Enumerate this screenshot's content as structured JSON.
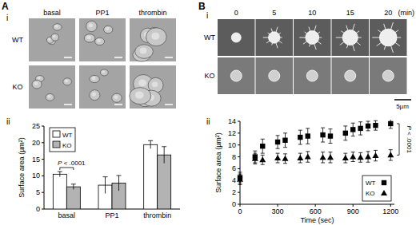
{
  "figure": {
    "panel_a": {
      "label": "A",
      "image_label": "i",
      "chart_label": "ii",
      "columns": [
        "basal",
        "PP1",
        "thrombin"
      ],
      "rows": [
        "WT",
        "KO"
      ]
    },
    "panel_b": {
      "label": "B",
      "image_label": "i",
      "chart_label": "ii",
      "columns": [
        "0",
        "5",
        "10",
        "15",
        "20"
      ],
      "unit": "(min)",
      "rows": [
        "WT",
        "KO"
      ],
      "scale_bar": "5µm"
    }
  },
  "chart_data": [
    {
      "type": "bar",
      "categories": [
        "basal",
        "PP1",
        "thrombin"
      ],
      "series": [
        {
          "name": "WT",
          "color": "#ffffff",
          "values": [
            10.5,
            7.2,
            19.4
          ],
          "errors": [
            0.8,
            2.5,
            1.2
          ]
        },
        {
          "name": "KO",
          "color": "#b3b3b3",
          "values": [
            6.7,
            7.8,
            16.3
          ],
          "errors": [
            0.8,
            2.3,
            2.5
          ]
        }
      ],
      "y_label": "Surface area (µm²)",
      "ylim": [
        0,
        25
      ],
      "yticks": [
        0,
        5,
        10,
        15,
        20,
        25
      ],
      "legend": "top-left",
      "annotation": "P < .0001"
    },
    {
      "type": "scatter",
      "x": [
        0,
        120,
        180,
        300,
        360,
        480,
        540,
        660,
        720,
        840,
        900,
        960,
        1020,
        1080,
        1200
      ],
      "series": [
        {
          "name": "WT",
          "color": "#000000",
          "marker": "square",
          "values": [
            4.5,
            8.0,
            9.8,
            10.5,
            10.8,
            11.3,
            11.5,
            11.7,
            11.5,
            12.0,
            12.6,
            12.8,
            13.2,
            13.3,
            13.6
          ],
          "errors": [
            0.9,
            1.0,
            1.2,
            1.1,
            1.2,
            1.2,
            1.3,
            1.2,
            1.2,
            1.2,
            1.1,
            1.1,
            0.8,
            0.8,
            0.8
          ]
        },
        {
          "name": "KO",
          "color": "#000000",
          "marker": "triangle",
          "values": [
            4.2,
            7.7,
            7.5,
            7.8,
            7.7,
            7.8,
            8.0,
            7.9,
            7.9,
            7.8,
            8.0,
            7.9,
            8.0,
            8.2,
            8.3
          ],
          "errors": [
            0.9,
            0.9,
            0.8,
            0.8,
            0.8,
            0.8,
            0.9,
            0.9,
            0.9,
            0.8,
            0.8,
            0.8,
            0.9,
            0.9,
            0.9
          ]
        }
      ],
      "x_label": "Time (sec)",
      "y_label": "Surface area (µm²)",
      "xlim": [
        0,
        1230
      ],
      "xticks": [
        0,
        300,
        600,
        900,
        1200
      ],
      "ylim": [
        0,
        14
      ],
      "yticks": [
        0,
        2,
        4,
        6,
        8,
        10,
        12,
        14
      ],
      "legend": "bottom-right",
      "annotation": "P < .0001"
    }
  ]
}
